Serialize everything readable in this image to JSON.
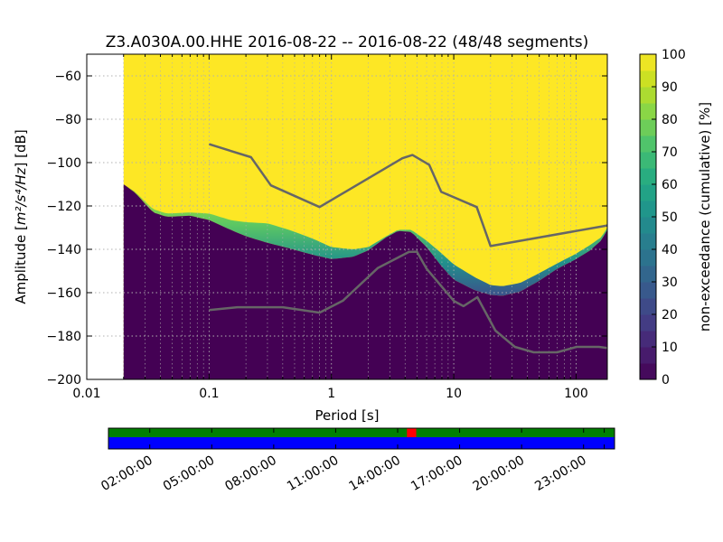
{
  "title": "Z3.A030A.00.HHE   2016-08-22 -- 2016-08-22  (48/48 segments)",
  "chart_data": {
    "type": "heatmap",
    "title": "Z3.A030A.00.HHE   2016-08-22 -- 2016-08-22  (48/48 segments)",
    "xlabel": "Period [s]",
    "ylabel_prefix": "Amplitude [",
    "ylabel_math": "m²/s⁴/Hz",
    "ylabel_suffix": "] [dB]",
    "x_scale": "log",
    "xlim": [
      0.01,
      180
    ],
    "ylim": [
      -200,
      -50
    ],
    "x_ticks": [
      {
        "value": 0.01,
        "label": "0.01"
      },
      {
        "value": 0.1,
        "label": "0.1"
      },
      {
        "value": 1,
        "label": "1"
      },
      {
        "value": 10,
        "label": "10"
      },
      {
        "value": 100,
        "label": "100"
      }
    ],
    "y_ticks": [
      {
        "value": -60,
        "label": "−60"
      },
      {
        "value": -80,
        "label": "−80"
      },
      {
        "value": -100,
        "label": "−100"
      },
      {
        "value": -120,
        "label": "−120"
      },
      {
        "value": -140,
        "label": "−140"
      },
      {
        "value": -160,
        "label": "−160"
      },
      {
        "value": -180,
        "label": "−180"
      },
      {
        "value": -200,
        "label": "−200"
      }
    ],
    "data_x_start": 0.02,
    "grid": true,
    "colors": {
      "low": "#440154",
      "high": "#fde725",
      "noise_model": "#666666",
      "grid": "#b0b0b0"
    },
    "psd_lower_boundary": [
      [
        0.02,
        -110
      ],
      [
        0.025,
        -114
      ],
      [
        0.03,
        -119
      ],
      [
        0.035,
        -123
      ],
      [
        0.045,
        -125
      ],
      [
        0.07,
        -124.5
      ],
      [
        0.1,
        -126.5
      ],
      [
        0.15,
        -131
      ],
      [
        0.2,
        -134
      ],
      [
        0.3,
        -137
      ],
      [
        0.45,
        -139.5
      ],
      [
        0.7,
        -142.5
      ],
      [
        1,
        -144.5
      ],
      [
        1.5,
        -143.5
      ],
      [
        2,
        -140.5
      ],
      [
        2.8,
        -134.5
      ],
      [
        3.5,
        -131.5
      ],
      [
        4.5,
        -132
      ],
      [
        6,
        -139
      ],
      [
        8,
        -148
      ],
      [
        10,
        -154
      ],
      [
        15,
        -159
      ],
      [
        20,
        -161
      ],
      [
        25,
        -161.5
      ],
      [
        35,
        -159.5
      ],
      [
        50,
        -154.5
      ],
      [
        70,
        -149
      ],
      [
        100,
        -144.5
      ],
      [
        130,
        -140.5
      ],
      [
        160,
        -136
      ],
      [
        180,
        -131
      ]
    ],
    "psd_upper_boundary": [
      [
        0.02,
        -110
      ],
      [
        0.025,
        -113.5
      ],
      [
        0.03,
        -118
      ],
      [
        0.035,
        -121.5
      ],
      [
        0.045,
        -123.5
      ],
      [
        0.07,
        -123
      ],
      [
        0.1,
        -123.5
      ],
      [
        0.15,
        -126.5
      ],
      [
        0.2,
        -127.5
      ],
      [
        0.3,
        -128
      ],
      [
        0.45,
        -131
      ],
      [
        0.7,
        -135
      ],
      [
        1,
        -139
      ],
      [
        1.5,
        -140
      ],
      [
        2,
        -139
      ],
      [
        2.8,
        -134
      ],
      [
        3.5,
        -131
      ],
      [
        4.5,
        -131
      ],
      [
        6,
        -136
      ],
      [
        8,
        -142
      ],
      [
        10,
        -147
      ],
      [
        15,
        -153
      ],
      [
        20,
        -156.5
      ],
      [
        25,
        -157
      ],
      [
        35,
        -155.5
      ],
      [
        50,
        -151
      ],
      [
        70,
        -146.5
      ],
      [
        100,
        -142
      ],
      [
        130,
        -138
      ],
      [
        160,
        -134.5
      ],
      [
        180,
        -130
      ]
    ],
    "noise_model_high": [
      [
        0.1,
        -91.5
      ],
      [
        0.22,
        -97.5
      ],
      [
        0.32,
        -110.5
      ],
      [
        0.8,
        -120.5
      ],
      [
        3.8,
        -98
      ],
      [
        4.6,
        -96.5
      ],
      [
        6.3,
        -101
      ],
      [
        7.9,
        -113.5
      ],
      [
        15.4,
        -120.5
      ],
      [
        20,
        -138.5
      ],
      [
        180,
        -129
      ]
    ],
    "noise_model_low": [
      [
        0.1,
        -168
      ],
      [
        0.17,
        -166.7
      ],
      [
        0.4,
        -166.7
      ],
      [
        0.8,
        -169.2
      ],
      [
        1.24,
        -163.7
      ],
      [
        2.4,
        -148.6
      ],
      [
        4.3,
        -141.2
      ],
      [
        5,
        -141.1
      ],
      [
        6,
        -149
      ],
      [
        10,
        -163.8
      ],
      [
        12,
        -166.2
      ],
      [
        15.6,
        -162.1
      ],
      [
        21.9,
        -177.5
      ],
      [
        31.6,
        -185
      ],
      [
        45,
        -187.5
      ],
      [
        70,
        -187.5
      ],
      [
        101,
        -185
      ],
      [
        154,
        -185
      ],
      [
        180,
        -185.5
      ]
    ],
    "colorbar": {
      "label": "non-exceedance (cumulative) [%]",
      "range": [
        0,
        100
      ],
      "ticks": [
        {
          "value": 0,
          "label": "0"
        },
        {
          "value": 10,
          "label": "10"
        },
        {
          "value": 20,
          "label": "20"
        },
        {
          "value": 30,
          "label": "30"
        },
        {
          "value": 40,
          "label": "40"
        },
        {
          "value": 50,
          "label": "50"
        },
        {
          "value": 60,
          "label": "60"
        },
        {
          "value": 70,
          "label": "70"
        },
        {
          "value": 80,
          "label": "80"
        },
        {
          "value": 90,
          "label": "90"
        },
        {
          "value": 100,
          "label": "100"
        }
      ]
    },
    "coverage": {
      "time_labels": [
        "02:00:00",
        "05:00:00",
        "08:00:00",
        "11:00:00",
        "14:00:00",
        "17:00:00",
        "20:00:00",
        "23:00:00"
      ],
      "time_label_hours": [
        2,
        5,
        8,
        11,
        14,
        17,
        20,
        23
      ],
      "tick_hours": [
        0,
        2,
        5,
        8,
        11,
        14,
        17,
        20,
        23,
        24
      ],
      "range_hours": [
        0.0,
        24.5
      ],
      "gap_marker_hours": [
        14.45,
        14.9
      ],
      "colors": {
        "data": "#008000",
        "psd": "#0000ff",
        "gap": "#ff0000"
      }
    }
  }
}
